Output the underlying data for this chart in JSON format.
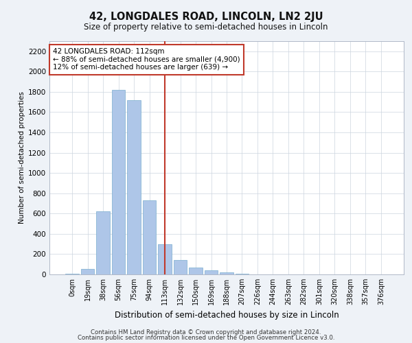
{
  "title": "42, LONGDALES ROAD, LINCOLN, LN2 2JU",
  "subtitle": "Size of property relative to semi-detached houses in Lincoln",
  "xlabel": "Distribution of semi-detached houses by size in Lincoln",
  "ylabel": "Number of semi-detached properties",
  "bar_labels": [
    "0sqm",
    "19sqm",
    "38sqm",
    "56sqm",
    "75sqm",
    "94sqm",
    "113sqm",
    "132sqm",
    "150sqm",
    "169sqm",
    "188sqm",
    "207sqm",
    "226sqm",
    "244sqm",
    "263sqm",
    "282sqm",
    "301sqm",
    "320sqm",
    "338sqm",
    "357sqm",
    "376sqm"
  ],
  "bar_values": [
    10,
    55,
    620,
    1820,
    1720,
    730,
    300,
    140,
    65,
    40,
    20,
    10,
    3,
    2,
    1,
    1,
    0,
    0,
    0,
    0,
    0
  ],
  "bar_color": "#aec6e8",
  "bar_edge_color": "#7aadce",
  "property_line_x": 6.0,
  "vline_color": "#c0392b",
  "annotation_text": "42 LONGDALES ROAD: 112sqm\n← 88% of semi-detached houses are smaller (4,900)\n12% of semi-detached houses are larger (639) →",
  "annotation_box_color": "#c0392b",
  "ylim": [
    0,
    2300
  ],
  "yticks": [
    0,
    200,
    400,
    600,
    800,
    1000,
    1200,
    1400,
    1600,
    1800,
    2000,
    2200
  ],
  "footer_line1": "Contains HM Land Registry data © Crown copyright and database right 2024.",
  "footer_line2": "Contains public sector information licensed under the Open Government Licence v3.0.",
  "background_color": "#eef2f7",
  "plot_background_color": "#ffffff"
}
